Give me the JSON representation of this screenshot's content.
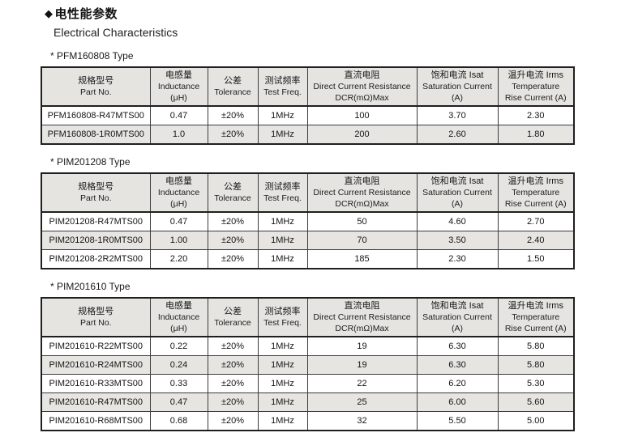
{
  "header": {
    "bullet": "◆",
    "title_cn": "电性能参数",
    "title_en": "Electrical Characteristics"
  },
  "columns": [
    {
      "id": "part-no",
      "lines": [
        "规格型号",
        "Part No."
      ]
    },
    {
      "id": "inductance",
      "lines": [
        "电感量",
        "Inductance",
        "(μH)"
      ]
    },
    {
      "id": "tolerance",
      "lines": [
        "公差",
        "Tolerance"
      ]
    },
    {
      "id": "test-freq",
      "lines": [
        "测试频率",
        "Test Freq."
      ]
    },
    {
      "id": "dcr",
      "lines": [
        "直流电阻",
        "Direct Current Resistance",
        "DCR(mΩ)Max"
      ]
    },
    {
      "id": "saturation-current",
      "lines": [
        "饱和电流 Isat",
        "Saturation Current",
        "(A)"
      ]
    },
    {
      "id": "temp-rise-current",
      "lines": [
        "温升电流 Irms",
        "Temperature",
        "Rise Current (A)"
      ]
    }
  ],
  "tables": [
    {
      "label": "* PFM160808 Type",
      "rows": [
        [
          "PFM160808-R47MTS00",
          "0.47",
          "±20%",
          "1MHz",
          "100",
          "3.70",
          "2.30"
        ],
        [
          "PFM160808-1R0MTS00",
          "1.0",
          "±20%",
          "1MHz",
          "200",
          "2.60",
          "1.80"
        ]
      ]
    },
    {
      "label": "* PIM201208 Type",
      "rows": [
        [
          "PIM201208-R47MTS00",
          "0.47",
          "±20%",
          "1MHz",
          "50",
          "4.60",
          "2.70"
        ],
        [
          "PIM201208-1R0MTS00",
          "1.00",
          "±20%",
          "1MHz",
          "70",
          "3.50",
          "2.40"
        ],
        [
          "PIM201208-2R2MTS00",
          "2.20",
          "±20%",
          "1MHz",
          "185",
          "2.30",
          "1.50"
        ]
      ]
    },
    {
      "label": "* PIM201610 Type",
      "rows": [
        [
          "PIM201610-R22MTS00",
          "0.22",
          "±20%",
          "1MHz",
          "19",
          "6.30",
          "5.80"
        ],
        [
          "PIM201610-R24MTS00",
          "0.24",
          "±20%",
          "1MHz",
          "19",
          "6.30",
          "5.80"
        ],
        [
          "PIM201610-R33MTS00",
          "0.33",
          "±20%",
          "1MHz",
          "22",
          "6.20",
          "5.30"
        ],
        [
          "PIM201610-R47MTS00",
          "0.47",
          "±20%",
          "1MHz",
          "25",
          "6.00",
          "5.60"
        ],
        [
          "PIM201610-R68MTS00",
          "0.68",
          "±20%",
          "1MHz",
          "32",
          "5.50",
          "5.00"
        ]
      ]
    }
  ],
  "colors": {
    "header_bg": "#e6e4e1",
    "alt_row_bg": "#e7e5e2",
    "border_strong": "#1f1f1f",
    "border_thin": "#3c3c3c",
    "text": "#1c1c1c"
  }
}
